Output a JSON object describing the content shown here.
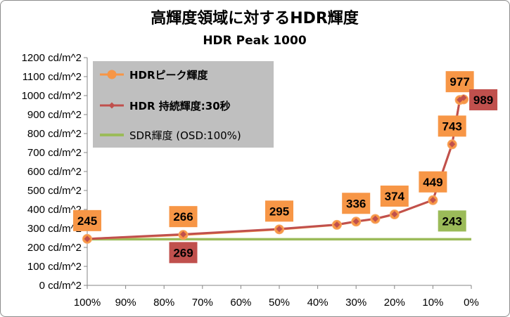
{
  "chart_data": {
    "type": "line",
    "title": "高輝度領域に対するHDR輝度",
    "subtitle": "HDR Peak 1000",
    "xlabel": "",
    "ylabel": "",
    "x_ticks": [
      "100%",
      "90%",
      "80%",
      "70%",
      "60%",
      "50%",
      "40%",
      "30%",
      "20%",
      "10%",
      "0%"
    ],
    "y_ticks": [
      "0 cd/m^2",
      "100 cd/m^2",
      "200 cd/m^2",
      "300 cd/m^2",
      "400 cd/m^2",
      "500 cd/m^2",
      "600 cd/m^2",
      "700 cd/m^2",
      "800 cd/m^2",
      "900 cd/m^2",
      "1000 cd/m^2",
      "1100 cd/m^2",
      "1200 cd/m^2"
    ],
    "xlim": [
      100,
      0
    ],
    "ylim": [
      0,
      1200
    ],
    "grid": false,
    "legend_position": "top-left",
    "series": [
      {
        "name": "HDRピーク輝度",
        "color": "#f79646",
        "marker": "circle",
        "points": [
          {
            "x": 100,
            "y": 245
          },
          {
            "x": 75,
            "y": 266
          },
          {
            "x": 50,
            "y": 295
          },
          {
            "x": 35,
            "y": 319
          },
          {
            "x": 30,
            "y": 336
          },
          {
            "x": 25,
            "y": 350
          },
          {
            "x": 20,
            "y": 374
          },
          {
            "x": 10,
            "y": 449
          },
          {
            "x": 5,
            "y": 743
          },
          {
            "x": 3,
            "y": 977
          },
          {
            "x": 2,
            "y": 980
          }
        ]
      },
      {
        "name": "HDR 持続輝度:30秒",
        "color": "#c0504d",
        "marker": "diamond",
        "points": [
          {
            "x": 100,
            "y": 245
          },
          {
            "x": 75,
            "y": 269
          },
          {
            "x": 50,
            "y": 297
          },
          {
            "x": 35,
            "y": 320
          },
          {
            "x": 30,
            "y": 337
          },
          {
            "x": 25,
            "y": 351
          },
          {
            "x": 20,
            "y": 375
          },
          {
            "x": 10,
            "y": 450
          },
          {
            "x": 5,
            "y": 744
          },
          {
            "x": 3,
            "y": 978
          },
          {
            "x": 2,
            "y": 989
          }
        ]
      },
      {
        "name": "SDR輝度 (OSD:100%)",
        "color": "#9bbb59",
        "marker": "none",
        "points": [
          {
            "x": 100,
            "y": 243
          },
          {
            "x": 0,
            "y": 243
          }
        ]
      }
    ],
    "data_labels": [
      {
        "text": "245",
        "x": 100,
        "y": 245,
        "series": 0,
        "placement": "above"
      },
      {
        "text": "266",
        "x": 75,
        "y": 266,
        "series": 0,
        "placement": "above"
      },
      {
        "text": "269",
        "x": 75,
        "y": 269,
        "series": 1,
        "placement": "below"
      },
      {
        "text": "295",
        "x": 50,
        "y": 295,
        "series": 0,
        "placement": "above"
      },
      {
        "text": "336",
        "x": 30,
        "y": 336,
        "series": 0,
        "placement": "above"
      },
      {
        "text": "374",
        "x": 20,
        "y": 374,
        "series": 0,
        "placement": "above"
      },
      {
        "text": "449",
        "x": 10,
        "y": 449,
        "series": 0,
        "placement": "above"
      },
      {
        "text": "743",
        "x": 5,
        "y": 743,
        "series": 0,
        "placement": "above"
      },
      {
        "text": "977",
        "x": 3,
        "y": 977,
        "series": 0,
        "placement": "above"
      },
      {
        "text": "989",
        "x": 2,
        "y": 989,
        "series": 1,
        "placement": "right"
      },
      {
        "text": "243",
        "x": 5,
        "y": 243,
        "series": 2,
        "placement": "above"
      }
    ],
    "label_fill": {
      "0": "#f79646",
      "1": "#c0504d",
      "2": "#9bbb59"
    },
    "legend_background": "#bfbfbf",
    "axis_color": "#868686"
  }
}
